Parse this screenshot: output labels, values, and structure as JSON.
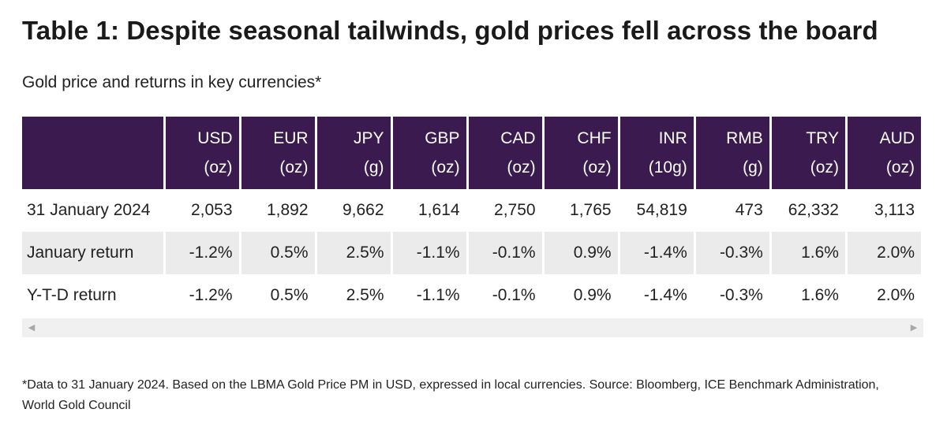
{
  "title": "Table 1: Despite seasonal tailwinds, gold prices fell across the board",
  "subtitle": "Gold price and returns in key currencies*",
  "table": {
    "columns": [
      {
        "code": "USD",
        "unit": "(oz)"
      },
      {
        "code": "EUR",
        "unit": "(oz)"
      },
      {
        "code": "JPY",
        "unit": "(g)"
      },
      {
        "code": "GBP",
        "unit": "(oz)"
      },
      {
        "code": "CAD",
        "unit": "(oz)"
      },
      {
        "code": "CHF",
        "unit": "(oz)"
      },
      {
        "code": "INR",
        "unit": "(10g)"
      },
      {
        "code": "RMB",
        "unit": "(g)"
      },
      {
        "code": "TRY",
        "unit": "(oz)"
      },
      {
        "code": "AUD",
        "unit": "(oz)"
      }
    ],
    "rows": [
      {
        "label": "31 January 2024",
        "values": [
          "2,053",
          "1,892",
          "9,662",
          "1,614",
          "2,750",
          "1,765",
          "54,819",
          "473",
          "62,332",
          "3,113"
        ]
      },
      {
        "label": "January return",
        "values": [
          "-1.2%",
          "0.5%",
          "2.5%",
          "-1.1%",
          "-0.1%",
          "0.9%",
          "-1.4%",
          "-0.3%",
          "1.6%",
          "2.0%"
        ]
      },
      {
        "label": "Y-T-D return",
        "values": [
          "-1.2%",
          "0.5%",
          "2.5%",
          "-1.1%",
          "-0.1%",
          "0.9%",
          "-1.4%",
          "-0.3%",
          "1.6%",
          "2.0%"
        ]
      }
    ]
  },
  "scrollbar": {
    "left_icon": "triangle-left-icon",
    "right_icon": "triangle-right-icon"
  },
  "footnote": "*Data to 31 January 2024. Based on the LBMA Gold Price PM in USD, expressed in local currencies. Source: Bloomberg, ICE Benchmark Administration, World Gold Council",
  "colors": {
    "header_bg": "#3a1a4f",
    "shaded_row": "#ebebeb",
    "header_text": "#ffffff"
  }
}
